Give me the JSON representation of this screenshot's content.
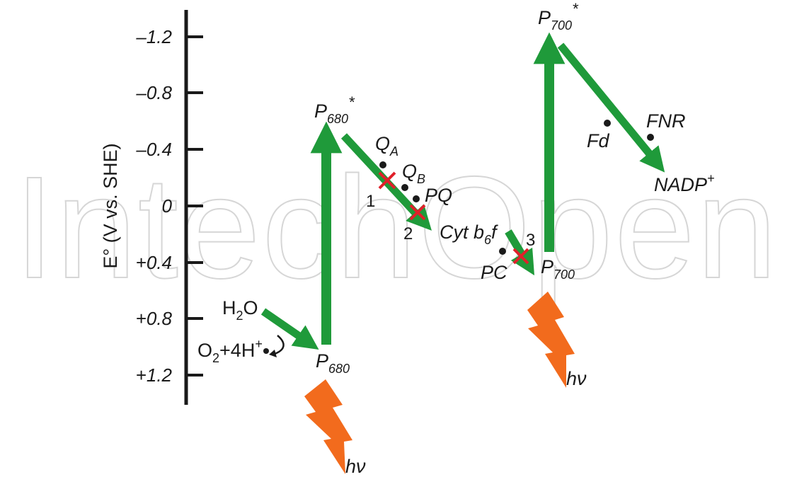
{
  "watermark": "IntechOpen",
  "axis": {
    "label": "E° (V vs. SHE)",
    "ticks": [
      "–1.2",
      "–0.8",
      "–0.4",
      "0",
      "+0.4",
      "+0.8",
      "+1.2"
    ]
  },
  "labels": {
    "h2o": "H",
    "h2o_sub": "2",
    "h2o_end": "O",
    "o2_pre": "O",
    "o2_sub": "2",
    "o2_mid": "+4H",
    "o2_sup": "+",
    "p680_base": "P",
    "p680_sub": "680",
    "p680s_base": "P",
    "p680s_sub": "680",
    "p680s_star": "*",
    "qa_base": "Q",
    "qa_sub": "A",
    "qb_base": "Q",
    "qb_sub": "B",
    "pq": "PQ",
    "site1": "1",
    "site2": "2",
    "site3": "3",
    "cyt_a": "Cyt b",
    "cyt_sub": "6",
    "cyt_b": "f",
    "pc": "PC",
    "p700_base": "P",
    "p700_sub": "700",
    "p700s_base": "P",
    "p700s_sub": "700",
    "p700s_star": "*",
    "fd": "Fd",
    "fnr": "FNR",
    "nadp_base": "NADP",
    "nadp_sup": "+",
    "hv1": "hν",
    "hv2": "hν"
  },
  "colors": {
    "arrow_green": "#1f9a3a",
    "arrow_edge": "#0f6a22",
    "light_orange": "#f26b1d",
    "inhibitor_red": "#e0202a",
    "axis_black": "#1a1a1a"
  }
}
